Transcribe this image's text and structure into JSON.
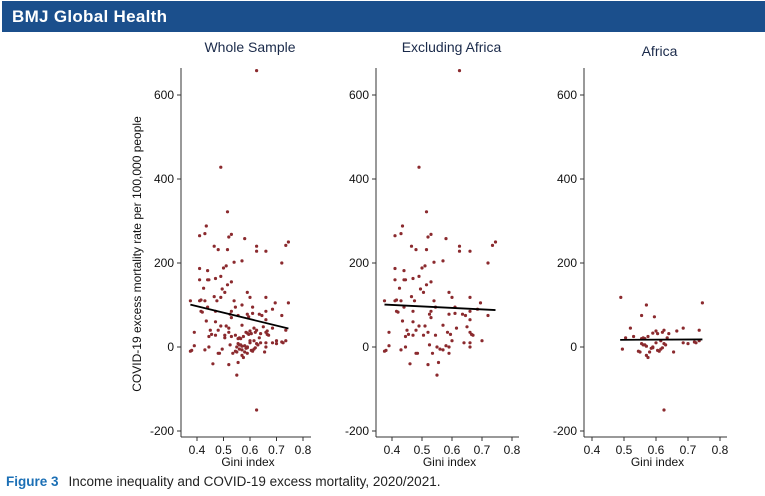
{
  "header": {
    "title": "BMJ Global Health"
  },
  "caption": {
    "label": "Figure 3",
    "text": "Income inequality and COVID-19 excess mortality, 2020/2021."
  },
  "colors": {
    "header": "#1b4f8c",
    "points": "#8b2a2e",
    "fit": "#000000",
    "caption_label": "#1b6fb5"
  },
  "chart_data": {
    "type": "scatter",
    "ylabel": "COVID-19 excess mortality rate per 100,000 people",
    "xlabel": "Gini index",
    "xticks": [
      "0.4",
      "0.5",
      "0.6",
      "0.7",
      "0.8"
    ],
    "yticks": [
      "-200",
      "0",
      "200",
      "400",
      "600"
    ],
    "xlim": [
      0.35,
      0.83
    ],
    "ylim": [
      -220,
      670
    ],
    "panels": [
      {
        "title": "Whole Sample",
        "series": [
          "Excluding Africa",
          "Africa"
        ],
        "fit": [
          [
            0.375,
            101
          ],
          [
            0.745,
            44
          ]
        ]
      },
      {
        "title": "Excluding Africa",
        "series": [
          "Excluding Africa"
        ],
        "fit": [
          [
            0.375,
            101
          ],
          [
            0.745,
            88
          ]
        ]
      },
      {
        "title": "Africa",
        "series": [
          "Africa"
        ],
        "fit": [
          [
            0.488,
            17
          ],
          [
            0.745,
            18
          ]
        ]
      }
    ],
    "series": {
      "Africa": [
        [
          0.49,
          118
        ],
        [
          0.495,
          -5
        ],
        [
          0.57,
          100
        ],
        [
          0.555,
          75
        ],
        [
          0.595,
          72
        ],
        [
          0.52,
          45
        ],
        [
          0.505,
          22
        ],
        [
          0.53,
          25
        ],
        [
          0.545,
          -10
        ],
        [
          0.55,
          -12
        ],
        [
          0.555,
          8
        ],
        [
          0.555,
          20
        ],
        [
          0.56,
          22
        ],
        [
          0.565,
          5
        ],
        [
          0.57,
          2
        ],
        [
          0.57,
          -20
        ],
        [
          0.575,
          -25
        ],
        [
          0.58,
          -12
        ],
        [
          0.585,
          -3
        ],
        [
          0.59,
          0
        ],
        [
          0.575,
          25
        ],
        [
          0.59,
          33
        ],
        [
          0.6,
          38
        ],
        [
          0.605,
          32
        ],
        [
          0.6,
          10
        ],
        [
          0.61,
          -10
        ],
        [
          0.615,
          -5
        ],
        [
          0.62,
          -2
        ],
        [
          0.615,
          15
        ],
        [
          0.62,
          35
        ],
        [
          0.625,
          40
        ],
        [
          0.625,
          8
        ],
        [
          0.63,
          5
        ],
        [
          0.635,
          22
        ],
        [
          0.64,
          32
        ],
        [
          0.625,
          -150
        ],
        [
          0.655,
          -12
        ],
        [
          0.665,
          38
        ],
        [
          0.685,
          45
        ],
        [
          0.685,
          10
        ],
        [
          0.7,
          8
        ],
        [
          0.72,
          12
        ],
        [
          0.725,
          10
        ],
        [
          0.735,
          15
        ],
        [
          0.735,
          40
        ],
        [
          0.745,
          105
        ],
        [
          0.56,
          5
        ],
        [
          0.565,
          20
        ],
        [
          0.59,
          -2
        ],
        [
          0.605,
          -8
        ]
      ],
      "Excluding Africa": [
        [
          0.375,
          110
        ],
        [
          0.375,
          -10
        ],
        [
          0.38,
          -8
        ],
        [
          0.39,
          35
        ],
        [
          0.39,
          3
        ],
        [
          0.41,
          265
        ],
        [
          0.41,
          187
        ],
        [
          0.41,
          160
        ],
        [
          0.41,
          110
        ],
        [
          0.415,
          85
        ],
        [
          0.415,
          112
        ],
        [
          0.42,
          83
        ],
        [
          0.425,
          140
        ],
        [
          0.43,
          270
        ],
        [
          0.43,
          110
        ],
        [
          0.43,
          -7
        ],
        [
          0.435,
          288
        ],
        [
          0.435,
          62
        ],
        [
          0.44,
          182
        ],
        [
          0.44,
          160
        ],
        [
          0.44,
          95
        ],
        [
          0.445,
          160
        ],
        [
          0.445,
          25
        ],
        [
          0.445,
          0
        ],
        [
          0.45,
          40
        ],
        [
          0.455,
          30
        ],
        [
          0.46,
          -40
        ],
        [
          0.465,
          240
        ],
        [
          0.465,
          120
        ],
        [
          0.47,
          163
        ],
        [
          0.47,
          85
        ],
        [
          0.47,
          60
        ],
        [
          0.47,
          28
        ],
        [
          0.475,
          110
        ],
        [
          0.48,
          232
        ],
        [
          0.48,
          40
        ],
        [
          0.48,
          -15
        ],
        [
          0.485,
          -15
        ],
        [
          0.49,
          428
        ],
        [
          0.49,
          168
        ],
        [
          0.49,
          50
        ],
        [
          0.495,
          138
        ],
        [
          0.5,
          188
        ],
        [
          0.505,
          130
        ],
        [
          0.505,
          28
        ],
        [
          0.51,
          193
        ],
        [
          0.51,
          50
        ],
        [
          0.515,
          322
        ],
        [
          0.515,
          232
        ],
        [
          0.515,
          148
        ],
        [
          0.52,
          262
        ],
        [
          0.52,
          35
        ],
        [
          0.52,
          -42
        ],
        [
          0.525,
          78
        ],
        [
          0.525,
          5
        ],
        [
          0.53,
          268
        ],
        [
          0.53,
          155
        ],
        [
          0.53,
          85
        ],
        [
          0.53,
          70
        ],
        [
          0.535,
          -15
        ],
        [
          0.54,
          110
        ],
        [
          0.54,
          202
        ],
        [
          0.545,
          28
        ],
        [
          0.545,
          95
        ],
        [
          0.55,
          0
        ],
        [
          0.55,
          -67
        ],
        [
          0.555,
          -37
        ],
        [
          0.56,
          -5
        ],
        [
          0.57,
          205
        ],
        [
          0.57,
          52
        ],
        [
          0.57,
          -7
        ],
        [
          0.58,
          258
        ],
        [
          0.58,
          3
        ],
        [
          0.585,
          35
        ],
        [
          0.59,
          130
        ],
        [
          0.59,
          78
        ],
        [
          0.59,
          0
        ],
        [
          0.59,
          -15
        ],
        [
          0.595,
          30
        ],
        [
          0.6,
          118
        ],
        [
          0.6,
          15
        ],
        [
          0.61,
          95
        ],
        [
          0.61,
          80
        ],
        [
          0.615,
          45
        ],
        [
          0.625,
          240
        ],
        [
          0.625,
          228
        ],
        [
          0.625,
          658
        ],
        [
          0.635,
          78
        ],
        [
          0.64,
          10
        ],
        [
          0.645,
          75
        ],
        [
          0.65,
          48
        ],
        [
          0.66,
          118
        ],
        [
          0.66,
          228
        ],
        [
          0.66,
          85
        ],
        [
          0.66,
          65
        ],
        [
          0.66,
          35
        ],
        [
          0.66,
          10
        ],
        [
          0.66,
          0
        ],
        [
          0.665,
          30
        ],
        [
          0.67,
          28
        ],
        [
          0.685,
          90
        ],
        [
          0.695,
          105
        ],
        [
          0.7,
          15
        ],
        [
          0.72,
          200
        ],
        [
          0.72,
          75
        ],
        [
          0.735,
          242
        ],
        [
          0.745,
          250
        ]
      ]
    }
  }
}
